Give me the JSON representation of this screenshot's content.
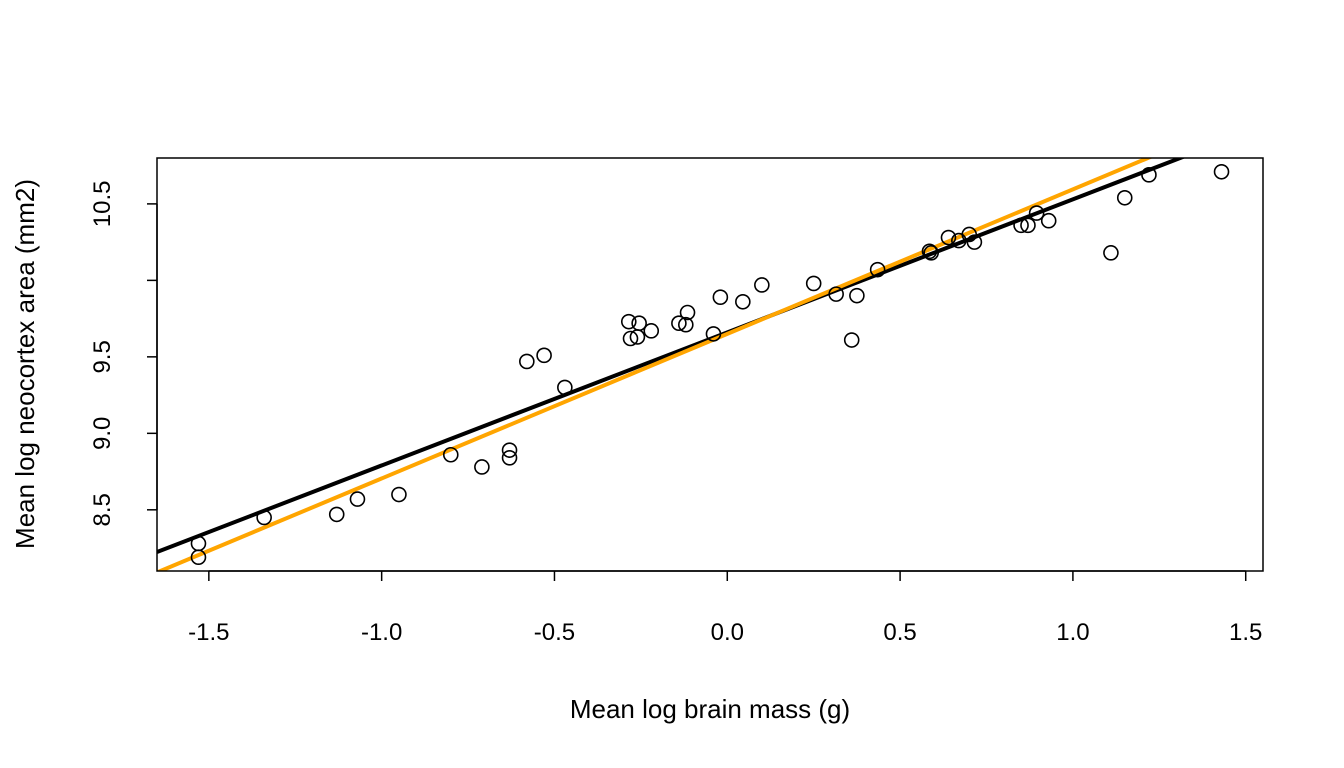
{
  "chart_data": {
    "type": "scatter",
    "title": "",
    "xlabel": "Mean log brain mass (g)",
    "ylabel": "Mean log neocortex area (mm2)",
    "xlim": [
      -1.65,
      1.55
    ],
    "ylim": [
      8.1,
      10.8
    ],
    "x_ticks": [
      -1.5,
      -1.0,
      -0.5,
      0.0,
      0.5,
      1.0,
      1.5
    ],
    "x_tick_labels": [
      "-1.5",
      "-1.0",
      "-0.5",
      "0.0",
      "0.5",
      "1.0",
      "1.5"
    ],
    "y_ticks": [
      8.5,
      9.0,
      9.5,
      10.0,
      10.5
    ],
    "y_tick_labels": [
      "8.5",
      "9.0",
      "9.5",
      "",
      "10.5"
    ],
    "grid": false,
    "points": [
      [
        -1.53,
        8.28
      ],
      [
        -1.53,
        8.19
      ],
      [
        -1.34,
        8.45
      ],
      [
        -1.13,
        8.47
      ],
      [
        -1.07,
        8.57
      ],
      [
        -0.95,
        8.6
      ],
      [
        -0.8,
        8.86
      ],
      [
        -0.71,
        8.78
      ],
      [
        -0.63,
        8.89
      ],
      [
        -0.63,
        8.84
      ],
      [
        -0.58,
        9.47
      ],
      [
        -0.53,
        9.51
      ],
      [
        -0.47,
        9.3
      ],
      [
        -0.285,
        9.73
      ],
      [
        -0.28,
        9.62
      ],
      [
        -0.26,
        9.63
      ],
      [
        -0.255,
        9.72
      ],
      [
        -0.22,
        9.67
      ],
      [
        -0.14,
        9.72
      ],
      [
        -0.12,
        9.71
      ],
      [
        -0.115,
        9.79
      ],
      [
        -0.04,
        9.65
      ],
      [
        -0.02,
        9.89
      ],
      [
        0.045,
        9.86
      ],
      [
        0.1,
        9.97
      ],
      [
        0.25,
        9.98
      ],
      [
        0.315,
        9.91
      ],
      [
        0.36,
        9.61
      ],
      [
        0.375,
        9.9
      ],
      [
        0.435,
        10.07
      ],
      [
        0.585,
        10.19
      ],
      [
        0.59,
        10.18
      ],
      [
        0.64,
        10.28
      ],
      [
        0.67,
        10.26
      ],
      [
        0.7,
        10.3
      ],
      [
        0.715,
        10.25
      ],
      [
        0.85,
        10.36
      ],
      [
        0.87,
        10.36
      ],
      [
        0.895,
        10.44
      ],
      [
        0.93,
        10.39
      ],
      [
        1.11,
        10.18
      ],
      [
        1.15,
        10.54
      ],
      [
        1.22,
        10.69
      ],
      [
        1.43,
        10.71
      ]
    ],
    "lines": [
      {
        "color": "#000000",
        "intercept": 9.66,
        "slope": 0.87
      },
      {
        "color": "#FFA500",
        "intercept": 9.65,
        "slope": 0.945
      }
    ]
  }
}
